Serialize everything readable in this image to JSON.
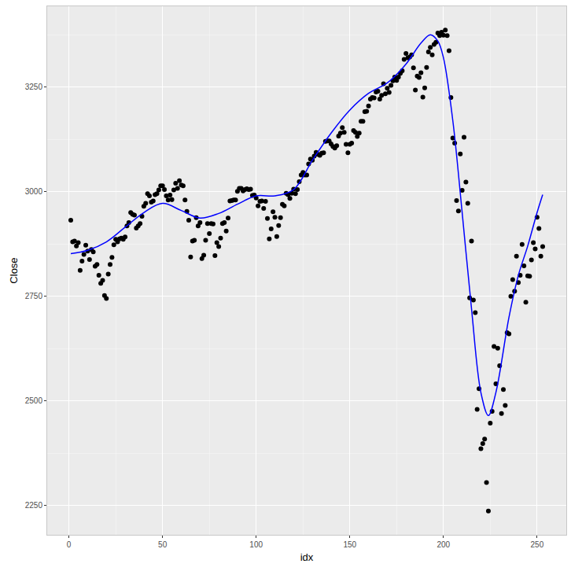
{
  "chart_data": {
    "type": "scatter",
    "x_label": "idx",
    "y_label": "Close",
    "xlim": [
      -11.6,
      265.6
    ],
    "xticks": [
      0,
      50,
      100,
      150,
      200,
      250
    ],
    "ylim": [
      2180,
      3443
    ],
    "yticks": [
      2250,
      2500,
      2750,
      3000,
      3250
    ],
    "grid": true,
    "series": [
      {
        "type": "scatter",
        "color": "#000000",
        "marker": "circle",
        "x": [
          1,
          2,
          3,
          4,
          5,
          6,
          7,
          8,
          9,
          10,
          11,
          12,
          13,
          14,
          15,
          16,
          17,
          18,
          19,
          20,
          21,
          22,
          23,
          24,
          25,
          26,
          27,
          28,
          29,
          30,
          31,
          32,
          33,
          34,
          35,
          36,
          37,
          38,
          39,
          40,
          41,
          42,
          43,
          44,
          45,
          46,
          47,
          48,
          49,
          50,
          51,
          52,
          53,
          54,
          55,
          56,
          57,
          58,
          59,
          60,
          61,
          62,
          63,
          64,
          65,
          66,
          67,
          68,
          69,
          70,
          71,
          72,
          73,
          74,
          75,
          76,
          77,
          78,
          79,
          80,
          81,
          82,
          83,
          84,
          85,
          86,
          87,
          88,
          89,
          90,
          91,
          92,
          93,
          94,
          95,
          96,
          97,
          98,
          99,
          100,
          101,
          102,
          103,
          104,
          105,
          106,
          107,
          108,
          109,
          110,
          111,
          112,
          113,
          114,
          115,
          116,
          117,
          118,
          119,
          120,
          121,
          122,
          123,
          124,
          125,
          126,
          127,
          128,
          129,
          130,
          131,
          132,
          133,
          134,
          135,
          136,
          137,
          138,
          139,
          140,
          141,
          142,
          143,
          144,
          145,
          146,
          147,
          148,
          149,
          150,
          151,
          152,
          153,
          154,
          155,
          156,
          157,
          158,
          159,
          160,
          161,
          162,
          163,
          164,
          165,
          166,
          167,
          168,
          169,
          170,
          171,
          172,
          173,
          174,
          175,
          176,
          177,
          178,
          179,
          180,
          181,
          182,
          183,
          184,
          185,
          186,
          187,
          188,
          189,
          190,
          191,
          192,
          193,
          194,
          195,
          196,
          197,
          198,
          199,
          200,
          201,
          202,
          203,
          204,
          205,
          206,
          207,
          208,
          209,
          210,
          211,
          212,
          213,
          214,
          215,
          216,
          217,
          218,
          219,
          220,
          221,
          222,
          223,
          224,
          225,
          226,
          227,
          228,
          229,
          230,
          231,
          232,
          233,
          234,
          235,
          236,
          237,
          238,
          239,
          240,
          241,
          242,
          243,
          244,
          245,
          246,
          247,
          248,
          249,
          250,
          251,
          252,
          253
        ],
        "values": [
          2932,
          2880,
          2882,
          2870,
          2878,
          2812,
          2834,
          2850,
          2872,
          2858,
          2838,
          2862,
          2856,
          2822,
          2826,
          2800,
          2781,
          2788,
          2752,
          2745,
          2803,
          2826,
          2843,
          2873,
          2886,
          2880,
          2887,
          2889,
          2886,
          2892,
          2918,
          2926,
          2950,
          2946,
          2944,
          2913,
          2918,
          2924,
          2941,
          2965,
          2972,
          2995,
          2990,
          2975,
          2978,
          2993,
          2995,
          3004,
          3014,
          3014,
          3005,
          2990,
          2980,
          2992,
          2981,
          3004,
          3020,
          3008,
          3026,
          3016,
          3014,
          2980,
          2953,
          2932,
          2844,
          2882,
          2884,
          2938,
          2918,
          2926,
          2840,
          2848,
          2884,
          2924,
          2900,
          2924,
          2923,
          2847,
          2878,
          2869,
          2889,
          2924,
          2926,
          2906,
          2937,
          2978,
          2979,
          2980,
          2980,
          3001,
          3008,
          3008,
          3002,
          3005,
          3007,
          3005,
          3006,
          2991,
          2992,
          2985,
          2966,
          2977,
          2978,
          2960,
          2977,
          2936,
          2887,
          2911,
          2952,
          2939,
          2893,
          2919,
          2938,
          2970,
          2966,
          2996,
          2993,
          2984,
          2996,
          3006,
          2995,
          3005,
          3024,
          3040,
          3046,
          3040,
          3040,
          3066,
          3078,
          3075,
          3085,
          3094,
          3089,
          3087,
          3092,
          3093,
          3120,
          3121,
          3121,
          3114,
          3108,
          3104,
          3110,
          3133,
          3140,
          3153,
          3142,
          3113,
          3093,
          3113,
          3116,
          3146,
          3142,
          3132,
          3140,
          3168,
          3168,
          3191,
          3192,
          3205,
          3221,
          3225,
          3224,
          3238,
          3240,
          3221,
          3230,
          3258,
          3234,
          3247,
          3237,
          3254,
          3265,
          3274,
          3266,
          3274,
          3283,
          3289,
          3316,
          3330,
          3320,
          3322,
          3327,
          3296,
          3243,
          3276,
          3273,
          3284,
          3226,
          3248,
          3297,
          3334,
          3345,
          3327,
          3352,
          3357,
          3379,
          3373,
          3381,
          3374,
          3386,
          3373,
          3337,
          3225,
          3128,
          3116,
          2979,
          2954,
          3090,
          3003,
          3130,
          3023,
          2972,
          2746,
          2882,
          2741,
          2711,
          2480,
          2529,
          2386,
          2398,
          2409,
          2305,
          2237,
          2447,
          2475,
          2630,
          2541,
          2626,
          2584,
          2470,
          2527,
          2489,
          2663,
          2660,
          2750,
          2790,
          2762,
          2846,
          2783,
          2800,
          2874,
          2823,
          2736,
          2799,
          2798,
          2837,
          2878,
          2863,
          2939,
          2912,
          2846,
          2869
        ]
      },
      {
        "type": "line",
        "color": "#0000ff",
        "line_style": "solid",
        "x": [
          1,
          10,
          20,
          30,
          40,
          50,
          60,
          70,
          80,
          90,
          100,
          110,
          120,
          130,
          140,
          150,
          160,
          170,
          180,
          188,
          193,
          197,
          200,
          205,
          210,
          215,
          220,
          224,
          228,
          235,
          240,
          245,
          250,
          253
        ],
        "values": [
          2852,
          2860,
          2880,
          2915,
          2950,
          2972,
          2955,
          2937,
          2948,
          2970,
          2990,
          2990,
          3005,
          3075,
          3140,
          3195,
          3235,
          3260,
          3305,
          3355,
          3375,
          3360,
          3320,
          3170,
          2950,
          2720,
          2520,
          2465,
          2520,
          2700,
          2800,
          2870,
          2950,
          2993
        ]
      }
    ]
  }
}
